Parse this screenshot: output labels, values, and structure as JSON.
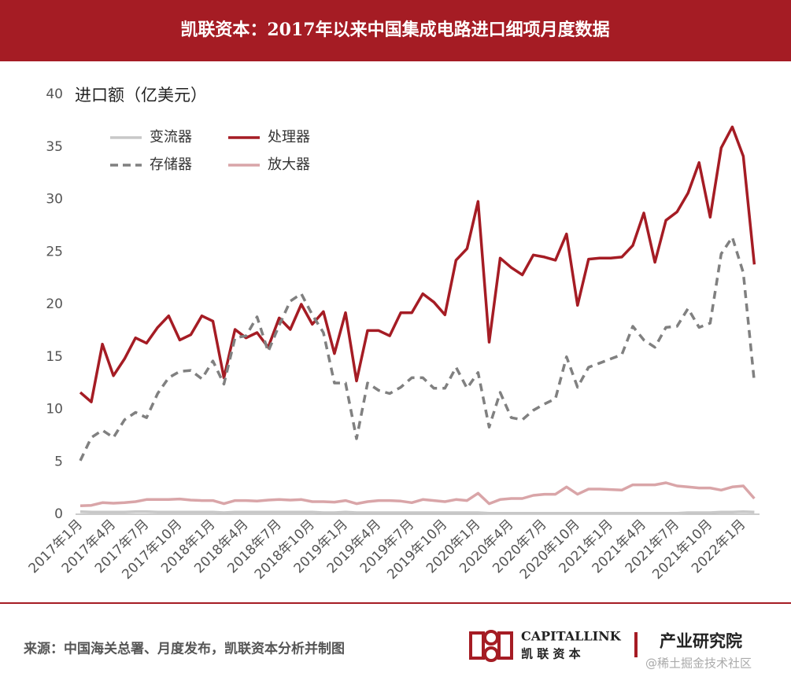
{
  "chart_data": {
    "type": "line",
    "title": "凯联资本：2017年以来中国集成电路进口细项月度数据",
    "ylabel": "进口额（亿美元）",
    "categories": [
      "2017年1月",
      null,
      null,
      "2017年4月",
      null,
      null,
      "2017年7月",
      null,
      null,
      "2017年10月",
      null,
      null,
      "2018年1月",
      null,
      null,
      "2018年4月",
      null,
      null,
      "2018年7月",
      null,
      null,
      "2018年10月",
      null,
      null,
      "2019年1月",
      null,
      null,
      "2019年4月",
      null,
      null,
      "2019年7月",
      null,
      null,
      "2019年10月",
      null,
      null,
      "2020年1月",
      null,
      null,
      "2020年4月",
      null,
      null,
      "2020年7月",
      null,
      null,
      "2020年10月",
      null,
      null,
      "2021年1月",
      null,
      null,
      "2021年4月",
      null,
      null,
      "2021年7月",
      null,
      null,
      "2021年10月",
      null,
      null,
      "2022年1月",
      null
    ],
    "series": [
      {
        "name": "变流器",
        "color": "#c8c8c8",
        "dash": false,
        "values": [
          0.25,
          0.2,
          0.2,
          0.2,
          0.2,
          0.25,
          0.25,
          0.2,
          0.2,
          0.2,
          0.2,
          0.2,
          0.2,
          0.15,
          0.2,
          0.2,
          0.2,
          0.2,
          0.2,
          0.2,
          0.2,
          0.2,
          0.15,
          0.15,
          0.2,
          0.15,
          0.15,
          0.15,
          0.15,
          0.15,
          0.15,
          0.15,
          0.15,
          0.15,
          0.15,
          0.15,
          0.15,
          0.1,
          0.1,
          0.1,
          0.1,
          0.1,
          0.1,
          0.1,
          0.1,
          0.1,
          0.1,
          0.1,
          0.1,
          0.1,
          0.1,
          0.1,
          0.1,
          0.1,
          0.1,
          0.15,
          0.15,
          0.15,
          0.2,
          0.2,
          0.25,
          0.2
        ]
      },
      {
        "name": "处理器",
        "color": "#a51c24",
        "dash": false,
        "values": [
          11.6,
          10.7,
          16.2,
          13.2,
          14.8,
          16.8,
          16.3,
          17.8,
          18.9,
          16.6,
          17.1,
          18.9,
          18.4,
          13.0,
          17.6,
          16.8,
          17.3,
          15.9,
          18.7,
          17.6,
          20.0,
          18.1,
          19.3,
          15.3,
          19.2,
          12.7,
          17.5,
          17.5,
          17.0,
          19.2,
          19.2,
          21.0,
          20.2,
          19.0,
          24.2,
          25.3,
          29.8,
          16.4,
          24.4,
          23.5,
          22.8,
          24.7,
          24.5,
          24.2,
          26.7,
          19.9,
          24.3,
          24.4,
          24.4,
          24.5,
          25.6,
          28.7,
          24.0,
          28.0,
          28.8,
          30.6,
          33.5,
          28.3,
          34.9,
          36.9,
          34.1,
          23.8
        ]
      },
      {
        "name": "存储器",
        "color": "#808080",
        "dash": true,
        "values": [
          5.1,
          7.3,
          8.0,
          7.3,
          9.0,
          9.7,
          9.2,
          11.5,
          13.0,
          13.6,
          13.7,
          12.9,
          14.6,
          12.4,
          16.8,
          17.0,
          18.8,
          15.5,
          18.0,
          20.3,
          21.0,
          19.0,
          17.3,
          12.5,
          12.5,
          7.2,
          12.5,
          11.8,
          11.5,
          12.1,
          13.0,
          13.0,
          12.0,
          12.0,
          14.0,
          12.0,
          13.5,
          8.3,
          11.6,
          9.2,
          9.0,
          9.9,
          10.5,
          11.0,
          15.0,
          12.1,
          14.0,
          14.4,
          14.8,
          15.2,
          17.9,
          16.6,
          15.9,
          17.8,
          17.9,
          19.6,
          17.8,
          18.2,
          24.8,
          26.4,
          23.0,
          12.6
        ]
      },
      {
        "name": "放大器",
        "color": "#d9a5a8",
        "dash": false,
        "values": [
          0.8,
          0.85,
          1.1,
          1.05,
          1.1,
          1.2,
          1.4,
          1.4,
          1.4,
          1.45,
          1.35,
          1.3,
          1.3,
          1.0,
          1.3,
          1.3,
          1.25,
          1.35,
          1.4,
          1.35,
          1.4,
          1.2,
          1.2,
          1.15,
          1.3,
          1.0,
          1.2,
          1.3,
          1.3,
          1.25,
          1.1,
          1.4,
          1.3,
          1.2,
          1.4,
          1.3,
          2.0,
          1.0,
          1.4,
          1.5,
          1.5,
          1.8,
          1.9,
          1.9,
          2.6,
          1.9,
          2.4,
          2.4,
          2.35,
          2.3,
          2.8,
          2.8,
          2.8,
          3.0,
          2.7,
          2.6,
          2.5,
          2.5,
          2.3,
          2.6,
          2.7,
          1.5
        ]
      }
    ],
    "ylim": [
      0,
      40
    ],
    "yticks": [
      0,
      5,
      10,
      15,
      20,
      25,
      30,
      35,
      40
    ],
    "grid": false
  },
  "footer": {
    "source": "来源：中国海关总署、月度发布，凯联资本分析并制图",
    "brand": "CAPITALLINK",
    "brand_cn": "凯 联 资 本",
    "dept": "产业研究院",
    "watermark": "@稀土掘金技术社区"
  }
}
